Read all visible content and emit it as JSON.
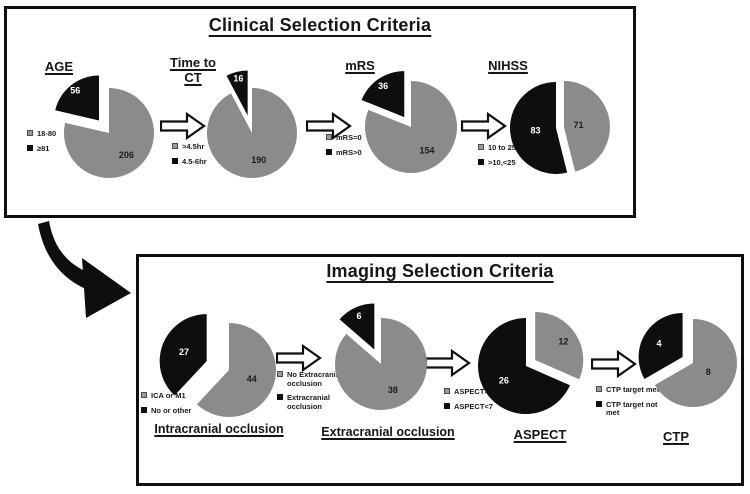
{
  "colors": {
    "slice_gray": "#8b8b8b",
    "slice_black": "#0e0e0e",
    "value_on_gray": "#1c1c1c",
    "value_on_black": "#ffffff",
    "ink": "#111111"
  },
  "panels": [
    {
      "title": "Clinical Selection Criteria"
    },
    {
      "title": "Imaging Selection Criteria"
    }
  ],
  "chart_data": [
    {
      "type": "pie",
      "id": "age",
      "panel": "Clinical Selection Criteria",
      "title": "AGE",
      "legend_position": "left",
      "slices": [
        {
          "label": "18-80",
          "value": 206,
          "color": "gray",
          "exploded": false
        },
        {
          "label": "≥81",
          "value": 56,
          "color": "black",
          "exploded": true
        }
      ]
    },
    {
      "type": "pie",
      "id": "time-to-ct",
      "panel": "Clinical Selection Criteria",
      "title": "Time to CT",
      "legend_position": "left",
      "slices": [
        {
          "label": ">4.5hr",
          "value": 190,
          "color": "gray",
          "exploded": false
        },
        {
          "label": "4.5-6hr",
          "value": 16,
          "color": "black",
          "exploded": true
        }
      ]
    },
    {
      "type": "pie",
      "id": "mrs",
      "panel": "Clinical Selection Criteria",
      "title": "mRS",
      "legend_position": "left",
      "slices": [
        {
          "label": "mRS=0",
          "value": 154,
          "color": "gray",
          "exploded": false
        },
        {
          "label": "mRS>0",
          "value": 36,
          "color": "black",
          "exploded": true
        }
      ]
    },
    {
      "type": "pie",
      "id": "nihss",
      "panel": "Clinical Selection Criteria",
      "title": "NIHSS",
      "legend_position": "left",
      "slices": [
        {
          "label": "10 to 25",
          "value": 71,
          "color": "gray",
          "exploded": true
        },
        {
          "label": ">10,<25",
          "value": 83,
          "color": "black",
          "exploded": false
        }
      ]
    },
    {
      "type": "pie",
      "id": "intracranial-occlusion",
      "panel": "Imaging Selection Criteria",
      "title": "Intracranial occlusion",
      "legend_position": "left",
      "slices": [
        {
          "label": "ICA or M1",
          "value": 44,
          "color": "gray",
          "exploded": false
        },
        {
          "label": "No or other",
          "value": 27,
          "color": "black",
          "exploded": true
        }
      ]
    },
    {
      "type": "pie",
      "id": "extracranial-occlusion",
      "panel": "Imaging Selection Criteria",
      "title": "Extracranial occlusion",
      "legend_position": "left",
      "slices": [
        {
          "label": "No Extracranial occlusion",
          "value": 38,
          "color": "gray",
          "exploded": false
        },
        {
          "label": "Extracranial occlusion",
          "value": 6,
          "color": "black",
          "exploded": true
        }
      ]
    },
    {
      "type": "pie",
      "id": "aspect",
      "panel": "Imaging Selection Criteria",
      "title": "ASPECT",
      "legend_position": "left",
      "slices": [
        {
          "label": "ASPECT>6",
          "value": 12,
          "color": "gray",
          "exploded": true
        },
        {
          "label": "ASPECT<7",
          "value": 26,
          "color": "black",
          "exploded": false
        }
      ]
    },
    {
      "type": "pie",
      "id": "ctp",
      "panel": "Imaging Selection Criteria",
      "title": "CTP",
      "legend_position": "left",
      "slices": [
        {
          "label": "CTP target met",
          "value": 8,
          "color": "gray",
          "exploded": false
        },
        {
          "label": "CTP target not met",
          "value": 4,
          "color": "black",
          "exploded": true
        }
      ]
    }
  ]
}
